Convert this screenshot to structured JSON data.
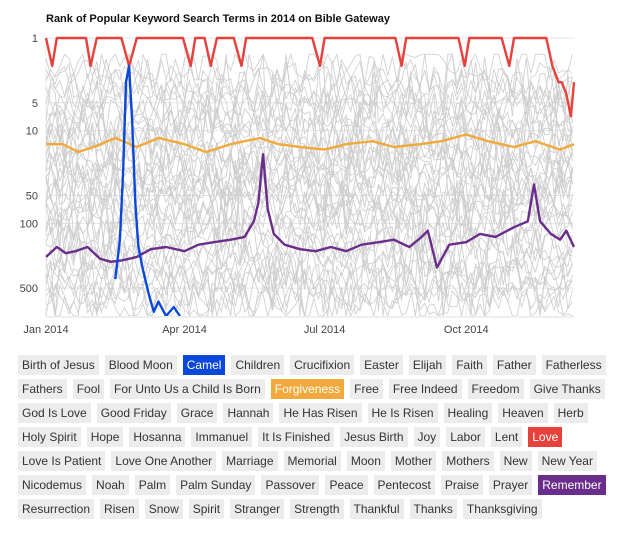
{
  "chart_data": {
    "type": "line",
    "title": "Rank of Popular Keyword Search Terms in 2014 on Bible Gateway",
    "y_scale": "log",
    "y_reversed": true,
    "y_range": [
      1,
      1000
    ],
    "y_ticks": [
      1,
      5,
      10,
      50,
      100,
      500
    ],
    "y_tick_labels": [
      "1",
      "5",
      "10",
      "50",
      "100",
      "500"
    ],
    "x_range": [
      "2014-01-01",
      "2014-12-10"
    ],
    "x_ticks": [
      "2014-01-01",
      "2014-04-01",
      "2014-07-01",
      "2014-10-01"
    ],
    "x_tick_labels": [
      "Jan 2014",
      "Apr 2014",
      "Jul 2014",
      "Oct 2014"
    ],
    "grid": true,
    "background_series_color": "#cccccc",
    "highlighted_series": [
      {
        "name": "Love",
        "color": "#e8413c",
        "points": [
          [
            "2014-01-01",
            1
          ],
          [
            "2014-01-05",
            2
          ],
          [
            "2014-01-08",
            1
          ],
          [
            "2014-01-20",
            1
          ],
          [
            "2014-01-27",
            1
          ],
          [
            "2014-01-30",
            2
          ],
          [
            "2014-02-03",
            1
          ],
          [
            "2014-02-14",
            1
          ],
          [
            "2014-02-19",
            1
          ],
          [
            "2014-02-24",
            2
          ],
          [
            "2014-03-01",
            1
          ],
          [
            "2014-03-31",
            1
          ],
          [
            "2014-04-05",
            2
          ],
          [
            "2014-04-08",
            1
          ],
          [
            "2014-04-14",
            1
          ],
          [
            "2014-04-18",
            2
          ],
          [
            "2014-04-22",
            1
          ],
          [
            "2014-05-03",
            1
          ],
          [
            "2014-05-08",
            2
          ],
          [
            "2014-05-11",
            1
          ],
          [
            "2014-06-23",
            1
          ],
          [
            "2014-06-28",
            2
          ],
          [
            "2014-07-01",
            1
          ],
          [
            "2014-08-16",
            1
          ],
          [
            "2014-08-20",
            2
          ],
          [
            "2014-08-23",
            1
          ],
          [
            "2014-09-26",
            1
          ],
          [
            "2014-09-30",
            2
          ],
          [
            "2014-10-03",
            1
          ],
          [
            "2014-10-24",
            1
          ],
          [
            "2014-10-29",
            2
          ],
          [
            "2014-11-01",
            1
          ],
          [
            "2014-11-22",
            1
          ],
          [
            "2014-11-26",
            2
          ],
          [
            "2014-11-30",
            3
          ],
          [
            "2014-12-02",
            3
          ],
          [
            "2014-12-05",
            4
          ],
          [
            "2014-12-08",
            7
          ],
          [
            "2014-12-10",
            3
          ]
        ]
      },
      {
        "name": "Forgiveness",
        "color": "#f2a93b",
        "points": [
          [
            "2014-01-01",
            14
          ],
          [
            "2014-01-12",
            14
          ],
          [
            "2014-01-22",
            17
          ],
          [
            "2014-02-01",
            15
          ],
          [
            "2014-02-15",
            12
          ],
          [
            "2014-03-01",
            15
          ],
          [
            "2014-03-15",
            12
          ],
          [
            "2014-04-01",
            14
          ],
          [
            "2014-04-15",
            17
          ],
          [
            "2014-05-01",
            14
          ],
          [
            "2014-05-10",
            13
          ],
          [
            "2014-05-20",
            12
          ],
          [
            "2014-06-01",
            14
          ],
          [
            "2014-06-15",
            15
          ],
          [
            "2014-07-01",
            16
          ],
          [
            "2014-07-15",
            14
          ],
          [
            "2014-08-01",
            13
          ],
          [
            "2014-08-15",
            15
          ],
          [
            "2014-09-01",
            14
          ],
          [
            "2014-09-15",
            13
          ],
          [
            "2014-10-01",
            11
          ],
          [
            "2014-10-15",
            13
          ],
          [
            "2014-11-01",
            15
          ],
          [
            "2014-11-15",
            13
          ],
          [
            "2014-12-01",
            16
          ],
          [
            "2014-12-10",
            14
          ]
        ]
      },
      {
        "name": "Remember",
        "color": "#6b2d8b",
        "points": [
          [
            "2014-01-01",
            230
          ],
          [
            "2014-01-08",
            180
          ],
          [
            "2014-01-14",
            210
          ],
          [
            "2014-01-20",
            200
          ],
          [
            "2014-01-28",
            180
          ],
          [
            "2014-02-05",
            240
          ],
          [
            "2014-02-12",
            260
          ],
          [
            "2014-02-20",
            250
          ],
          [
            "2014-03-01",
            230
          ],
          [
            "2014-03-10",
            190
          ],
          [
            "2014-03-20",
            180
          ],
          [
            "2014-04-01",
            200
          ],
          [
            "2014-04-10",
            170
          ],
          [
            "2014-04-20",
            160
          ],
          [
            "2014-05-01",
            150
          ],
          [
            "2014-05-10",
            140
          ],
          [
            "2014-05-16",
            95
          ],
          [
            "2014-05-19",
            60
          ],
          [
            "2014-05-22",
            18
          ],
          [
            "2014-05-25",
            70
          ],
          [
            "2014-05-29",
            130
          ],
          [
            "2014-06-05",
            170
          ],
          [
            "2014-06-15",
            190
          ],
          [
            "2014-06-25",
            200
          ],
          [
            "2014-07-05",
            180
          ],
          [
            "2014-07-15",
            200
          ],
          [
            "2014-07-25",
            170
          ],
          [
            "2014-08-05",
            160
          ],
          [
            "2014-08-15",
            150
          ],
          [
            "2014-08-25",
            180
          ],
          [
            "2014-09-02",
            140
          ],
          [
            "2014-09-06",
            120
          ],
          [
            "2014-09-12",
            300
          ],
          [
            "2014-09-20",
            170
          ],
          [
            "2014-10-01",
            160
          ],
          [
            "2014-10-10",
            130
          ],
          [
            "2014-10-20",
            140
          ],
          [
            "2014-11-01",
            110
          ],
          [
            "2014-11-10",
            95
          ],
          [
            "2014-11-14",
            38
          ],
          [
            "2014-11-18",
            95
          ],
          [
            "2014-11-25",
            130
          ],
          [
            "2014-12-01",
            150
          ],
          [
            "2014-12-05",
            120
          ],
          [
            "2014-12-10",
            180
          ]
        ]
      },
      {
        "name": "Camel",
        "color": "#0a48d9",
        "points": [
          [
            "2014-02-15",
            400
          ],
          [
            "2014-02-18",
            150
          ],
          [
            "2014-02-20",
            30
          ],
          [
            "2014-02-22",
            3
          ],
          [
            "2014-02-24",
            2
          ],
          [
            "2014-02-26",
            8
          ],
          [
            "2014-02-28",
            60
          ],
          [
            "2014-03-02",
            180
          ],
          [
            "2014-03-05",
            320
          ],
          [
            "2014-03-09",
            600
          ],
          [
            "2014-03-12",
            900
          ],
          [
            "2014-03-15",
            700
          ],
          [
            "2014-03-20",
            1000
          ],
          [
            "2014-03-25",
            800
          ],
          [
            "2014-03-29",
            1000
          ]
        ]
      }
    ]
  },
  "tags": {
    "colors": {
      "Camel": "#0a48d9",
      "Forgiveness": "#f2a93b",
      "Love": "#e8413c",
      "Remember": "#6b2d8b"
    },
    "rows": [
      [
        "Birth of Jesus",
        "Blood Moon",
        "Camel",
        "Children",
        "Crucifixion",
        "Easter",
        "Elijah",
        "Faith",
        "Father",
        "Fatherless"
      ],
      [
        "Fathers",
        "Fool",
        "For Unto Us a Child Is Born",
        "Forgiveness",
        "Free",
        "Free Indeed",
        "Freedom",
        "Give Thanks"
      ],
      [
        "God Is Love",
        "Good Friday",
        "Grace",
        "Hannah",
        "He Has Risen",
        "He Is Risen",
        "Healing",
        "Heaven",
        "Herb"
      ],
      [
        "Holy Spirit",
        "Hope",
        "Hosanna",
        "Immanuel",
        "It Is Finished",
        "Jesus Birth",
        "Joy",
        "Labor",
        "Lent",
        "Love"
      ],
      [
        "Love Is Patient",
        "Love One Another",
        "Marriage",
        "Memorial",
        "Moon",
        "Mother",
        "Mothers",
        "New",
        "New Year"
      ],
      [
        "Nicodemus",
        "Noah",
        "Palm",
        "Palm Sunday",
        "Passover",
        "Peace",
        "Pentecost",
        "Praise",
        "Prayer",
        "Remember"
      ],
      [
        "Resurrection",
        "Risen",
        "Snow",
        "Spirit",
        "Stranger",
        "Strength",
        "Thankful",
        "Thanks",
        "Thanksgiving"
      ]
    ],
    "selected": [
      "Camel",
      "Forgiveness",
      "Love",
      "Remember"
    ]
  }
}
